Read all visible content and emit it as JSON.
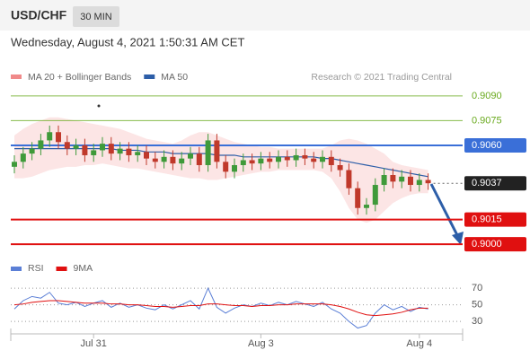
{
  "chart_data": [
    {
      "type": "candlestick",
      "title": "USD/CHF",
      "timeframe": "30 MIN",
      "subtitle": "Wednesday, August 4, 2021 1:50:31 AM CET",
      "credit": "Research © 2021 Trading Central",
      "categories": [
        null,
        null,
        null,
        null,
        null,
        null,
        null,
        null,
        null,
        "Jul 31",
        null,
        null,
        null,
        null,
        null,
        null,
        null,
        null,
        null,
        null,
        null,
        null,
        null,
        null,
        null,
        null,
        null,
        null,
        "Aug 3",
        null,
        null,
        null,
        null,
        null,
        null,
        null,
        null,
        null,
        null,
        null,
        null,
        null,
        null,
        null,
        null,
        null,
        "Aug 4",
        null
      ],
      "open": [
        0.9047,
        0.905,
        0.9055,
        0.9058,
        0.9063,
        0.9068,
        0.9062,
        0.9058,
        0.906,
        0.9054,
        0.9057,
        0.9061,
        0.9055,
        0.9058,
        0.9054,
        0.9056,
        0.9052,
        0.905,
        0.9053,
        0.9049,
        0.9052,
        0.9055,
        0.9048,
        0.9063,
        0.905,
        0.9044,
        0.9048,
        0.9051,
        0.9049,
        0.9052,
        0.905,
        0.9053,
        0.9051,
        0.9054,
        0.9052,
        0.905,
        0.9053,
        0.9048,
        0.9045,
        0.9034,
        0.9022,
        0.9024,
        0.9036,
        0.9042,
        0.9038,
        0.9041,
        0.9036,
        0.9039
      ],
      "close": [
        0.905,
        0.9055,
        0.9058,
        0.9063,
        0.9068,
        0.9062,
        0.9058,
        0.906,
        0.9054,
        0.9057,
        0.9061,
        0.9055,
        0.9058,
        0.9054,
        0.9056,
        0.9052,
        0.905,
        0.9053,
        0.9049,
        0.9052,
        0.9055,
        0.9048,
        0.9063,
        0.905,
        0.9044,
        0.9048,
        0.9051,
        0.9049,
        0.9052,
        0.905,
        0.9053,
        0.9051,
        0.9054,
        0.9052,
        0.905,
        0.9053,
        0.9048,
        0.9045,
        0.9034,
        0.9022,
        0.9024,
        0.9036,
        0.9042,
        0.9038,
        0.9041,
        0.9036,
        0.9039,
        0.9037
      ],
      "high": [
        0.9054,
        0.9059,
        0.9062,
        0.9067,
        0.9072,
        0.9072,
        0.9066,
        0.9064,
        0.9064,
        0.9061,
        0.9065,
        0.9065,
        0.9062,
        0.9062,
        0.906,
        0.906,
        0.9056,
        0.9057,
        0.9057,
        0.9056,
        0.9059,
        0.9059,
        0.9067,
        0.9067,
        0.9054,
        0.9052,
        0.9055,
        0.9055,
        0.9056,
        0.9056,
        0.9057,
        0.9057,
        0.9058,
        0.9058,
        0.9056,
        0.9057,
        0.9057,
        0.9052,
        0.9049,
        0.9038,
        0.9028,
        0.904,
        0.9046,
        0.9046,
        0.9045,
        0.9045,
        0.9043,
        0.9043
      ],
      "low": [
        0.9043,
        0.9046,
        0.9051,
        0.9054,
        0.9059,
        0.9058,
        0.9054,
        0.9054,
        0.905,
        0.905,
        0.9053,
        0.9051,
        0.9051,
        0.905,
        0.905,
        0.9048,
        0.9046,
        0.9046,
        0.9045,
        0.9045,
        0.9048,
        0.9044,
        0.9044,
        0.9046,
        0.904,
        0.904,
        0.9044,
        0.9045,
        0.9045,
        0.9046,
        0.9046,
        0.9047,
        0.9047,
        0.9048,
        0.9046,
        0.9046,
        0.9044,
        0.9041,
        0.903,
        0.9018,
        0.9018,
        0.902,
        0.9032,
        0.9034,
        0.9034,
        0.9032,
        0.9032,
        0.9033
      ],
      "up_color": "#3f9a3a",
      "down_color": "#c0392b",
      "series": [
        {
          "name": "MA 20 + Bollinger Bands",
          "color": "#f08a8a",
          "upper": [
            0.9066,
            0.907,
            0.9073,
            0.9075,
            0.9077,
            0.9077,
            0.9076,
            0.9075,
            0.9074,
            0.9073,
            0.9072,
            0.9071,
            0.907,
            0.9068,
            0.9066,
            0.9064,
            0.9063,
            0.9062,
            0.9061,
            0.9063,
            0.9066,
            0.9068,
            0.9068,
            0.9066,
            0.9064,
            0.9062,
            0.9061,
            0.906,
            0.9059,
            0.9059,
            0.9058,
            0.9058,
            0.9058,
            0.9058,
            0.9058,
            0.9058,
            0.906,
            0.9063,
            0.9064,
            0.9063,
            0.9061,
            0.9058,
            0.9055,
            0.905,
            0.9048,
            0.9047,
            0.9046,
            0.9045
          ],
          "lower": [
            0.904,
            0.904,
            0.9041,
            0.9043,
            0.9045,
            0.9046,
            0.9047,
            0.9047,
            0.9048,
            0.9048,
            0.9049,
            0.9048,
            0.9047,
            0.9046,
            0.9046,
            0.9045,
            0.9044,
            0.9043,
            0.9042,
            0.9041,
            0.904,
            0.904,
            0.9039,
            0.9039,
            0.904,
            0.9041,
            0.9042,
            0.9043,
            0.9044,
            0.9044,
            0.9045,
            0.9045,
            0.9045,
            0.9045,
            0.9045,
            0.9044,
            0.904,
            0.9032,
            0.9022,
            0.9015,
            0.9013,
            0.9015,
            0.902,
            0.9025,
            0.9028,
            0.903,
            0.9031,
            0.9031
          ]
        },
        {
          "name": "MA 50",
          "color": "#2d5ea8",
          "values": [
            0.9058,
            0.9058,
            0.9058,
            0.9058,
            0.9058,
            0.9058,
            0.9058,
            0.9058,
            0.9058,
            0.9058,
            0.9058,
            0.9058,
            0.9057,
            0.9057,
            0.9057,
            0.9056,
            0.9056,
            0.9056,
            0.9055,
            0.9055,
            0.9055,
            0.9055,
            0.9055,
            0.9054,
            0.9054,
            0.9054,
            0.9053,
            0.9053,
            0.9053,
            0.9053,
            0.9053,
            0.9053,
            0.9053,
            0.9053,
            0.9053,
            0.9052,
            0.9052,
            0.9051,
            0.905,
            0.9049,
            0.9048,
            0.9047,
            0.9046,
            0.9045,
            0.9044,
            0.9043,
            0.9042,
            0.9041
          ]
        }
      ],
      "levels": [
        {
          "value": 0.909,
          "label": "0.9090",
          "color": "#6aaa1f",
          "filled": false
        },
        {
          "value": 0.9075,
          "label": "0.9075",
          "color": "#6aaa1f",
          "filled": false
        },
        {
          "value": 0.906,
          "label": "0.9060",
          "color": "#3a6fd8",
          "filled": true
        },
        {
          "value": 0.9037,
          "label": "0.9037",
          "color": "#222222",
          "filled": true,
          "dotted": true
        },
        {
          "value": 0.9015,
          "label": "0.9015",
          "color": "#e01010",
          "filled": true
        },
        {
          "value": 0.9,
          "label": "0.9000",
          "color": "#e01010",
          "filled": true
        }
      ],
      "ylim": [
        0.8993,
        0.9097
      ]
    },
    {
      "type": "line",
      "series": [
        {
          "name": "RSI",
          "color": "#5b7fd6",
          "values": [
            45,
            55,
            60,
            58,
            65,
            52,
            50,
            53,
            48,
            52,
            55,
            47,
            52,
            47,
            50,
            46,
            44,
            50,
            45,
            50,
            55,
            45,
            70,
            47,
            40,
            46,
            50,
            48,
            52,
            49,
            53,
            50,
            54,
            51,
            48,
            53,
            45,
            40,
            30,
            22,
            25,
            40,
            50,
            44,
            48,
            42,
            47,
            45
          ]
        },
        {
          "name": "9MA",
          "color": "#e01010",
          "values": [
            50,
            51,
            53,
            54,
            55,
            55,
            54,
            53,
            52,
            52,
            52,
            51,
            51,
            50,
            50,
            49,
            48,
            48,
            47,
            48,
            49,
            49,
            51,
            51,
            50,
            49,
            49,
            48,
            49,
            49,
            50,
            50,
            51,
            51,
            51,
            51,
            50,
            48,
            45,
            41,
            38,
            37,
            38,
            39,
            41,
            44,
            46,
            46
          ]
        }
      ],
      "ylim": [
        15,
        82
      ],
      "yticks": [
        30,
        50,
        70
      ],
      "grid": true
    }
  ]
}
